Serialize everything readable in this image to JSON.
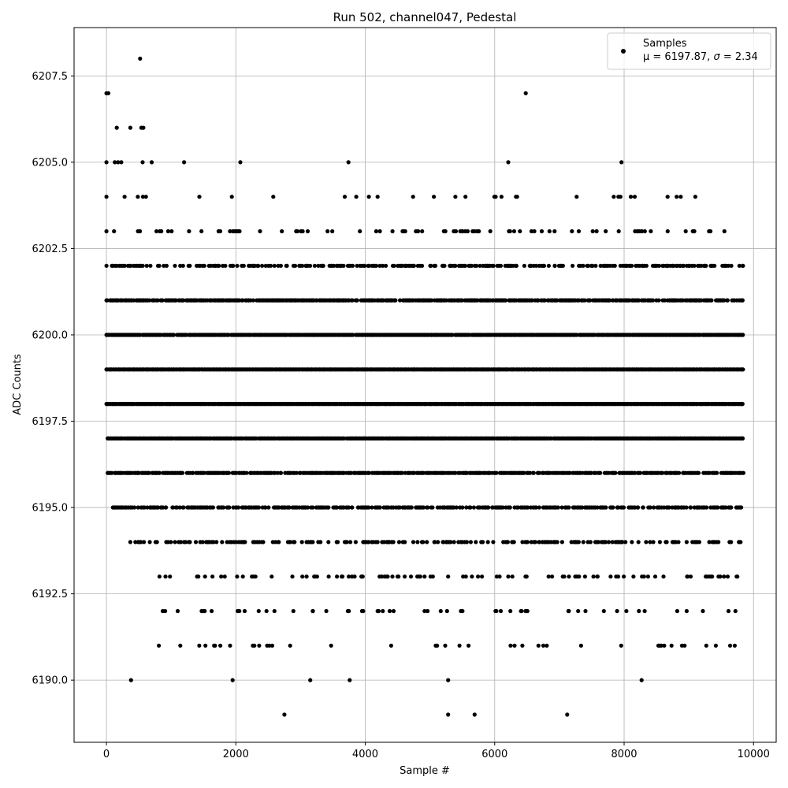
{
  "chart_data": {
    "type": "scatter",
    "title": "Run 502, channel047, Pedestal",
    "xlabel": "Sample #",
    "ylabel": "ADC Counts",
    "xlim": [
      -500,
      10350
    ],
    "ylim": [
      6188.2,
      6208.9
    ],
    "x_ticks": [
      0,
      2000,
      4000,
      6000,
      8000,
      10000
    ],
    "x_tick_labels": [
      "0",
      "2000",
      "4000",
      "6000",
      "8000",
      "10000"
    ],
    "y_ticks": [
      6190.0,
      6192.5,
      6195.0,
      6197.5,
      6200.0,
      6202.5,
      6205.0,
      6207.5
    ],
    "y_tick_labels": [
      "6190.0",
      "6192.5",
      "6195.0",
      "6197.5",
      "6200.0",
      "6202.5",
      "6205.0",
      "6207.5"
    ],
    "grid": true,
    "legend": {
      "placement": "top-right",
      "series_label": "Samples",
      "stats_prefix": "μ = 6197.87, ",
      "stats_sigma_symbol": "σ",
      "stats_suffix": " = 2.34"
    },
    "marker_color": "#000000",
    "x_range": [
      0,
      9830
    ],
    "series": [
      {
        "name": "Samples",
        "points": [
          [
            0,
            6207
          ],
          [
            30,
            6207
          ],
          [
            520,
            6208
          ],
          [
            6480,
            6207
          ],
          [
            160,
            6206
          ],
          [
            370,
            6206
          ],
          [
            540,
            6206
          ],
          [
            570,
            6206
          ],
          [
            0,
            6205
          ],
          [
            130,
            6205
          ],
          [
            180,
            6205
          ],
          [
            230,
            6205
          ],
          [
            560,
            6205
          ],
          [
            700,
            6205
          ],
          [
            1200,
            6205
          ],
          [
            2070,
            6205
          ],
          [
            3740,
            6205
          ],
          [
            6210,
            6205
          ],
          [
            7960,
            6205
          ],
          [
            380,
            6190
          ],
          [
            1950,
            6190
          ],
          [
            3150,
            6190
          ],
          [
            3760,
            6190
          ],
          [
            5280,
            6190
          ],
          [
            8270,
            6190
          ],
          [
            2750,
            6189
          ],
          [
            5280,
            6189
          ],
          [
            5690,
            6189
          ],
          [
            7120,
            6189
          ]
        ],
        "levels": [
          {
            "y": 6204,
            "density": 0.045,
            "x_min": 0,
            "x_max": 9100
          },
          {
            "y": 6203,
            "density": 0.13,
            "x_min": 0,
            "x_max": 9550
          },
          {
            "y": 6202,
            "density": 0.4,
            "x_min": 0,
            "x_max": 9830
          },
          {
            "y": 6201,
            "density": 0.82,
            "x_min": 0,
            "x_max": 9830
          },
          {
            "y": 6200,
            "density": 0.95,
            "x_min": 0,
            "x_max": 9830
          },
          {
            "y": 6199,
            "density": 1.0,
            "x_min": 0,
            "x_max": 9830
          },
          {
            "y": 6198,
            "density": 1.0,
            "x_min": 0,
            "x_max": 9830
          },
          {
            "y": 6197,
            "density": 0.95,
            "x_min": 20,
            "x_max": 9830
          },
          {
            "y": 6196,
            "density": 0.75,
            "x_min": 20,
            "x_max": 9830
          },
          {
            "y": 6195,
            "density": 0.55,
            "x_min": 100,
            "x_max": 9800
          },
          {
            "y": 6194,
            "density": 0.35,
            "x_min": 370,
            "x_max": 9800
          },
          {
            "y": 6193,
            "density": 0.17,
            "x_min": 820,
            "x_max": 9750
          },
          {
            "y": 6192,
            "density": 0.09,
            "x_min": 870,
            "x_max": 9720
          },
          {
            "y": 6191,
            "density": 0.05,
            "x_min": 810,
            "x_max": 9710
          }
        ]
      }
    ]
  }
}
